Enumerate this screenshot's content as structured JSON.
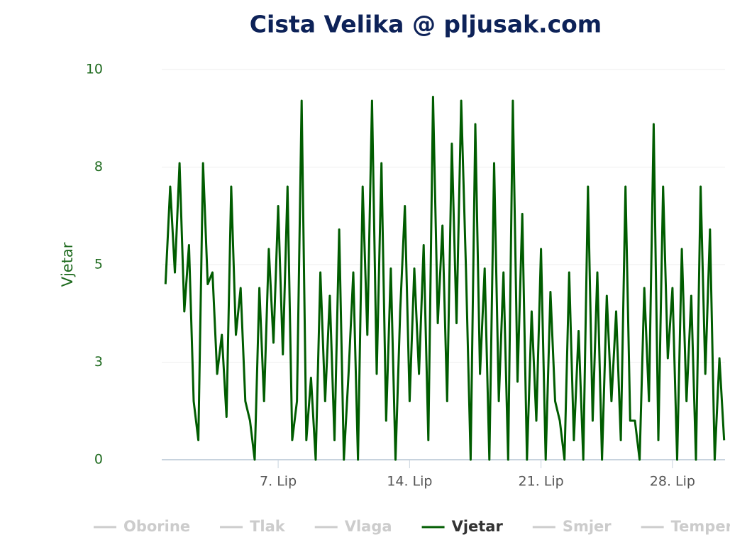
{
  "chart_data": {
    "type": "line",
    "title": "Cista Velika @ pljusak.com",
    "ylabel": "Vjetar",
    "x": [
      1,
      1.25,
      1.5,
      1.75,
      2,
      2.25,
      2.5,
      2.75,
      3,
      3.25,
      3.5,
      3.75,
      4,
      4.25,
      4.5,
      4.75,
      5,
      5.25,
      5.5,
      5.75,
      6,
      6.25,
      6.5,
      6.75,
      7,
      7.25,
      7.5,
      7.75,
      8,
      8.25,
      8.5,
      8.75,
      9,
      9.25,
      9.5,
      9.75,
      10,
      10.25,
      10.5,
      10.75,
      11,
      11.25,
      11.5,
      11.75,
      12,
      12.25,
      12.5,
      12.75,
      13,
      13.25,
      13.5,
      13.75,
      14,
      14.25,
      14.5,
      14.75,
      15,
      15.25,
      15.5,
      15.75,
      16,
      16.25,
      16.5,
      16.75,
      17,
      17.25,
      17.5,
      17.75,
      18,
      18.25,
      18.5,
      18.75,
      19,
      19.25,
      19.5,
      19.75,
      20,
      20.25,
      20.5,
      20.75,
      21,
      21.25,
      21.5,
      21.75,
      22,
      22.25,
      22.5,
      22.75,
      23,
      23.25,
      23.5,
      23.75,
      24,
      24.25,
      24.5,
      24.75,
      25,
      25.25,
      25.5,
      25.75,
      26,
      26.25,
      26.5,
      26.75,
      27,
      27.25,
      27.5,
      27.75,
      28,
      28.25,
      28.5,
      28.75,
      29,
      29.25,
      29.5,
      29.75,
      30,
      30.25,
      30.5,
      30.75
    ],
    "series": [
      {
        "name": "Oborine",
        "visible": false
      },
      {
        "name": "Tlak",
        "visible": false
      },
      {
        "name": "Vlaga",
        "visible": false
      },
      {
        "name": "Vjetar",
        "visible": true,
        "color": "#005c00",
        "values": [
          4.5,
          7.0,
          4.8,
          7.6,
          3.8,
          5.5,
          1.5,
          0.5,
          7.6,
          4.5,
          4.8,
          2.2,
          3.2,
          1.1,
          7.0,
          3.2,
          4.4,
          1.5,
          1.0,
          0.0,
          4.4,
          1.5,
          5.4,
          3.0,
          6.5,
          2.7,
          7.0,
          0.5,
          1.5,
          9.2,
          0.5,
          2.1,
          0.0,
          4.8,
          1.5,
          4.2,
          0.5,
          5.9,
          0.0,
          2.2,
          4.8,
          0.0,
          7.0,
          3.2,
          9.2,
          2.2,
          7.6,
          1.0,
          4.9,
          0.0,
          3.8,
          6.5,
          1.5,
          4.9,
          2.2,
          5.5,
          0.5,
          9.3,
          3.5,
          6.0,
          1.5,
          8.1,
          3.5,
          9.2,
          4.9,
          0.0,
          8.6,
          2.2,
          4.9,
          0.0,
          7.6,
          1.5,
          4.8,
          0.0,
          9.2,
          2.0,
          6.3,
          0.0,
          3.8,
          1.0,
          5.4,
          0.0,
          4.3,
          1.5,
          1.0,
          0.0,
          4.8,
          0.5,
          3.3,
          0.0,
          7.0,
          1.0,
          4.8,
          0.0,
          4.2,
          1.5,
          3.8,
          0.5,
          7.0,
          1.0,
          1.0,
          0.0,
          4.4,
          1.5,
          8.6,
          0.5,
          7.0,
          2.6,
          4.4,
          0.0,
          5.4,
          1.5,
          4.2,
          0.0,
          7.0,
          2.2,
          5.9,
          0.0,
          2.6,
          0.5
        ]
      },
      {
        "name": "Smjer",
        "visible": false
      },
      {
        "name": "Temperatura",
        "visible": false
      }
    ],
    "xlim": [
      0.8,
      30.8
    ],
    "xticks": [
      {
        "value": 7,
        "label": "7. Lip"
      },
      {
        "value": 14,
        "label": "14. Lip"
      },
      {
        "value": 21,
        "label": "21. Lip"
      },
      {
        "value": 28,
        "label": "28. Lip"
      }
    ],
    "ylim": [
      0,
      10
    ],
    "yticks": [
      0,
      {
        "value": 2.5,
        "label": "3"
      },
      5,
      {
        "value": 7.5,
        "label": "8"
      },
      10
    ],
    "grid": true
  }
}
